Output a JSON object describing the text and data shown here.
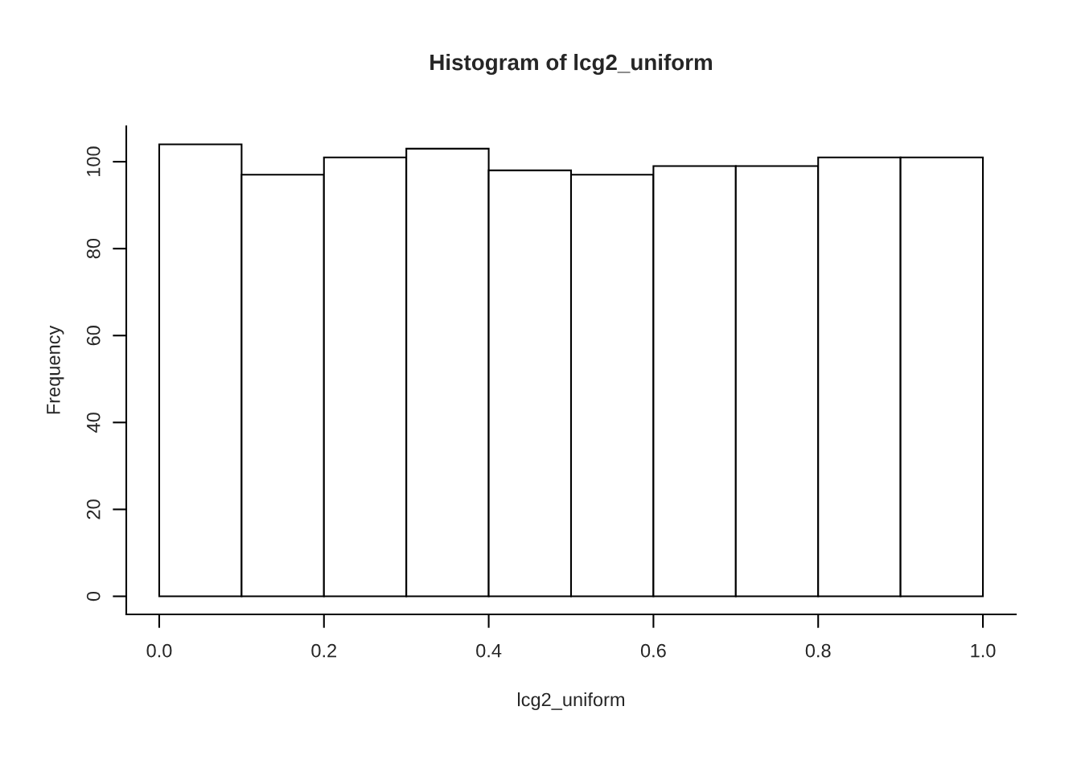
{
  "chart_data": {
    "type": "histogram",
    "title": "Histogram of lcg2_uniform",
    "xlabel": "lcg2_uniform",
    "ylabel": "Frequency",
    "bins": [
      0.0,
      0.1,
      0.2,
      0.3,
      0.4,
      0.5,
      0.6,
      0.7,
      0.8,
      0.9,
      1.0
    ],
    "values": [
      104,
      97,
      101,
      103,
      98,
      97,
      99,
      99,
      101,
      101
    ],
    "color": "#ffffff",
    "xlim": [
      -0.04,
      1.04
    ],
    "ylim": [
      -4.16,
      108.16
    ],
    "xticks": [
      {
        "value": 0.0,
        "label": "0.0"
      },
      {
        "value": 0.2,
        "label": "0.2"
      },
      {
        "value": 0.4,
        "label": "0.4"
      },
      {
        "value": 0.6,
        "label": "0.6"
      },
      {
        "value": 0.8,
        "label": "0.8"
      },
      {
        "value": 1.0,
        "label": "1.0"
      }
    ],
    "yticks": [
      0,
      20,
      40,
      60,
      80,
      100
    ],
    "grid": false
  }
}
